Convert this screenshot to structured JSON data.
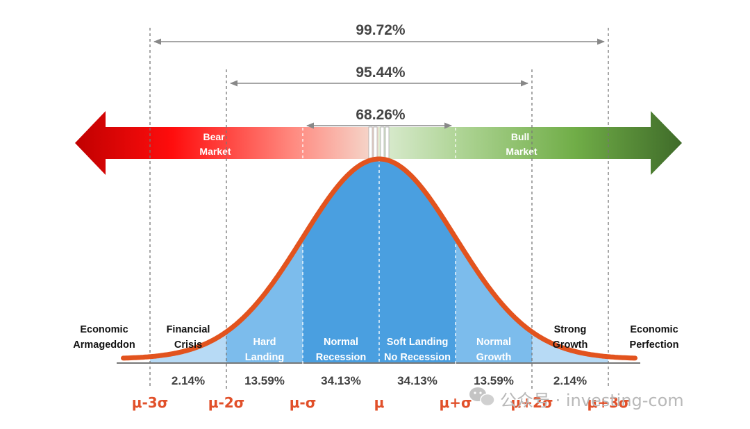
{
  "spans": [
    {
      "label": "99.72%",
      "from": -3,
      "to": 3
    },
    {
      "label": "95.44%",
      "from": -2,
      "to": 2
    },
    {
      "label": "68.26%",
      "from": -1,
      "to": 1
    }
  ],
  "market_arrow": {
    "left_label": [
      "Bear",
      "Market"
    ],
    "right_label": [
      "Bull",
      "Market"
    ],
    "colors": {
      "bear": "#c00000",
      "bull": "#3f6b29"
    }
  },
  "regions": [
    {
      "lines": [
        "Economic",
        "Armageddon"
      ],
      "center": -3.6,
      "inside": false
    },
    {
      "lines": [
        "Financial",
        "Crisis"
      ],
      "center": -2.5,
      "inside": false
    },
    {
      "lines": [
        "Hard",
        "Landing"
      ],
      "center": -1.5,
      "inside": true
    },
    {
      "lines": [
        "Normal",
        "Recession"
      ],
      "center": -0.5,
      "inside": true
    },
    {
      "lines": [
        "Soft Landing",
        "No Recession"
      ],
      "center": 0.5,
      "inside": true
    },
    {
      "lines": [
        "Normal",
        "Growth"
      ],
      "center": 1.5,
      "inside": true
    },
    {
      "lines": [
        "Strong",
        "Growth"
      ],
      "center": 2.5,
      "inside": false
    },
    {
      "lines": [
        "Economic",
        "Perfection"
      ],
      "center": 3.6,
      "inside": false
    }
  ],
  "percentages": [
    {
      "label": "2.14%",
      "center": -2.5
    },
    {
      "label": "13.59%",
      "center": -1.5
    },
    {
      "label": "34.13%",
      "center": -0.5
    },
    {
      "label": "34.13%",
      "center": 0.5
    },
    {
      "label": "13.59%",
      "center": 1.5
    },
    {
      "label": "2.14%",
      "center": 2.5
    }
  ],
  "axis_labels": [
    {
      "label": "μ-3σ",
      "sigma": -3
    },
    {
      "label": "μ-2σ",
      "sigma": -2
    },
    {
      "label": "μ-σ",
      "sigma": -1
    },
    {
      "label": "μ",
      "sigma": 0
    },
    {
      "label": "μ+σ",
      "sigma": 1
    },
    {
      "label": "μ+2σ",
      "sigma": 2
    },
    {
      "label": "μ+3σ",
      "sigma": 3
    }
  ],
  "colors": {
    "curve": "#e2531e",
    "fill_dark": "#4a9fe0",
    "fill_mid": "#7cbcec",
    "fill_light": "#b7daf5",
    "axis_text": "#e1502a",
    "guide": "#777777"
  },
  "watermark": {
    "icon": "wechat-icon",
    "text": "公众号 · investing-com"
  }
}
